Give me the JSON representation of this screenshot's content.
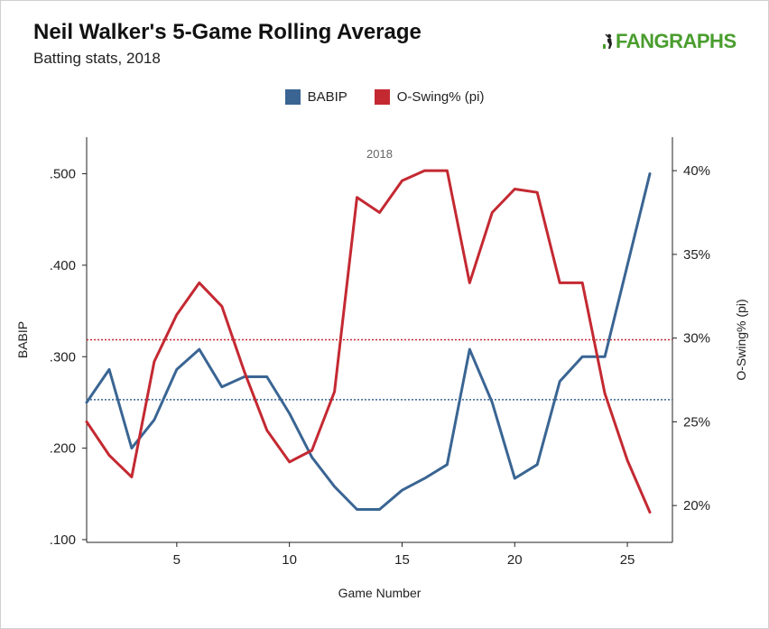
{
  "header": {
    "title": "Neil Walker's 5-Game Rolling Average",
    "subtitle": "Batting stats, 2018",
    "logo_text": "FANGRAPHS"
  },
  "colors": {
    "babip": "#3a6593",
    "oswing": "#c42932",
    "logo": "#4a9d2e"
  },
  "chart_data": {
    "type": "line",
    "title": "Neil Walker's 5-Game Rolling Average",
    "subtitle": "Batting stats, 2018",
    "panel_label": "2018",
    "xlabel": "Game Number",
    "ylabel_left": "BABIP",
    "ylabel_right": "O-Swing% (pi)",
    "xlim": [
      1,
      27
    ],
    "x_ticks": [
      5,
      10,
      15,
      20,
      25
    ],
    "ylim_left": [
      0.097,
      0.54
    ],
    "y_ticks_left": [
      0.1,
      0.2,
      0.3,
      0.4,
      0.5
    ],
    "y_tick_labels_left": [
      ".100",
      ".200",
      ".300",
      ".400",
      ".500"
    ],
    "ylim_right": [
      0.178,
      0.42
    ],
    "y_ticks_right": [
      0.2,
      0.25,
      0.3,
      0.35,
      0.4
    ],
    "y_tick_labels_right": [
      "20%",
      "25%",
      "30%",
      "35%",
      "40%"
    ],
    "legend": {
      "position": "top-center",
      "entries": [
        "BABIP",
        "O-Swing% (pi)"
      ]
    },
    "grid": false,
    "x": [
      1,
      2,
      3,
      4,
      5,
      6,
      7,
      8,
      9,
      10,
      11,
      12,
      13,
      14,
      15,
      16,
      17,
      18,
      19,
      20,
      21,
      22,
      23,
      24,
      25,
      26
    ],
    "series": [
      {
        "name": "BABIP",
        "axis": "left",
        "values": [
          0.25,
          0.286,
          0.2,
          0.231,
          0.286,
          0.308,
          0.267,
          0.278,
          0.278,
          0.238,
          0.19,
          0.158,
          0.133,
          0.133,
          0.154,
          0.167,
          0.182,
          0.308,
          0.25,
          0.167,
          0.182,
          0.273,
          0.3,
          0.3,
          0.4,
          0.5
        ],
        "reference": 0.253
      },
      {
        "name": "O-Swing% (pi)",
        "axis": "right",
        "values": [
          0.25,
          0.23,
          0.217,
          0.286,
          0.314,
          0.333,
          0.319,
          0.28,
          0.245,
          0.226,
          0.233,
          0.268,
          0.384,
          0.375,
          0.394,
          0.4,
          0.4,
          0.333,
          0.375,
          0.389,
          0.387,
          0.333,
          0.333,
          0.267,
          0.227,
          0.196
        ],
        "reference": 0.299
      }
    ]
  }
}
